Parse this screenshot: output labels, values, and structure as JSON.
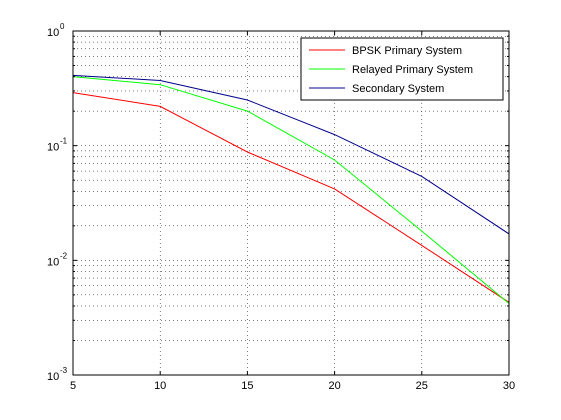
{
  "chart_data": {
    "type": "line",
    "title": "",
    "xlabel": "",
    "ylabel": "",
    "xscale": "linear",
    "yscale": "log",
    "xlim": [
      5,
      30
    ],
    "ylim": [
      0.001,
      1
    ],
    "xticks": [
      5,
      10,
      15,
      20,
      25,
      30
    ],
    "xtick_labels": [
      "5",
      "10",
      "15",
      "20",
      "25",
      "30"
    ],
    "yticks": [
      0.001,
      0.01,
      0.1,
      1
    ],
    "ytick_labels": [
      {
        "base": "10",
        "exp": "-3"
      },
      {
        "base": "10",
        "exp": "-2"
      },
      {
        "base": "10",
        "exp": "-1"
      },
      {
        "base": "10",
        "exp": "0"
      }
    ],
    "grid": true,
    "legend_position": "top-right",
    "x": [
      5,
      10,
      15,
      20,
      25,
      30
    ],
    "series": [
      {
        "name": "BPSK Primary System",
        "color": "#ff0000",
        "values": [
          0.29,
          0.22,
          0.088,
          0.042,
          0.0135,
          0.0043
        ]
      },
      {
        "name": "Relayed Primary System",
        "color": "#00ff00",
        "values": [
          0.4,
          0.34,
          0.2,
          0.075,
          0.018,
          0.0042
        ]
      },
      {
        "name": "Secondary System",
        "color": "#00008b",
        "values": [
          0.41,
          0.37,
          0.25,
          0.125,
          0.054,
          0.017
        ]
      }
    ]
  }
}
